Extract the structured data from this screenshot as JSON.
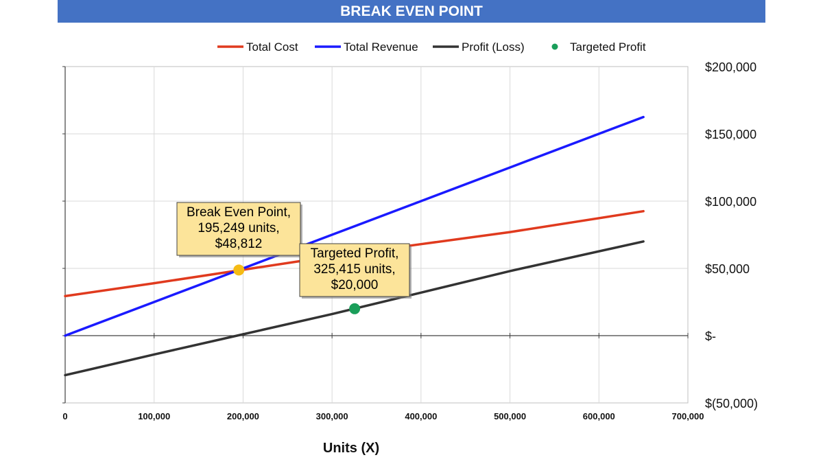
{
  "chart_data": {
    "type": "line",
    "title": "BREAK EVEN POINT",
    "xlabel": "Units (X)",
    "ylabel": "",
    "xlim": [
      0,
      700000
    ],
    "ylim": [
      -50000,
      200000
    ],
    "x_tick_labels": [
      "0",
      "100,000",
      "200,000",
      "300,000",
      "400,000",
      "500,000",
      "600,000",
      "700,000"
    ],
    "y_tick_labels": [
      "$200,000",
      "$150,000",
      "$100,000",
      "$50,000",
      "$-",
      "$(50,000)"
    ],
    "grid": true,
    "legend_position": "top",
    "series": [
      {
        "name": "Total Cost",
        "color": "#e03a1e",
        "x": [
          0,
          100000,
          200000,
          300000,
          400000,
          500000,
          650000
        ],
        "y": [
          29400,
          39000,
          49000,
          59000,
          68000,
          77000,
          92500
        ]
      },
      {
        "name": "Total Revenue",
        "color": "#1a1aff",
        "x": [
          0,
          100000,
          200000,
          300000,
          400000,
          500000,
          650000
        ],
        "y": [
          0,
          25000,
          50000,
          75000,
          100000,
          125000,
          162500
        ]
      },
      {
        "name": "Profit (Loss)",
        "color": "#333333",
        "x": [
          0,
          100000,
          200000,
          300000,
          400000,
          500000,
          650000
        ],
        "y": [
          -29400,
          -14000,
          1000,
          16000,
          32000,
          48000,
          70000
        ]
      }
    ],
    "points": [
      {
        "name": "Targeted Profit",
        "color": "#1a9e5a",
        "x": 325415,
        "y": 20000,
        "label": [
          "Targeted Profit,",
          "325,415 units,",
          "$20,000"
        ]
      },
      {
        "name": "Break Even Point",
        "color": "#f5bb14",
        "x": 195249,
        "y": 48812,
        "label": [
          "Break Even Point,",
          "195,249 units,",
          "$48,812"
        ]
      }
    ]
  }
}
